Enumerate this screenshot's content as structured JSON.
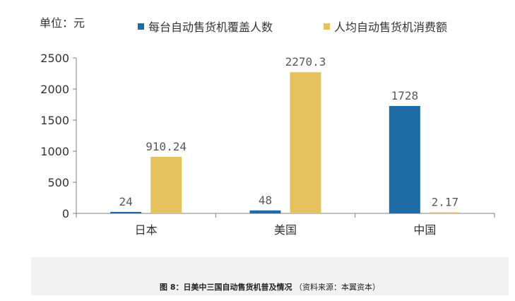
{
  "unit_label": "单位：元",
  "caption": {
    "main": "图 8：日美中三国自动售货机普及情况",
    "source": "（资料来源：本翼资本）"
  },
  "colors": {
    "series_1": "#1f6ba5",
    "series_2": "#e6c25f"
  },
  "chart_data": {
    "type": "bar",
    "categories": [
      "日本",
      "美国",
      "中国"
    ],
    "series": [
      {
        "name": "每台自动售货机覆盖人数",
        "values": [
          24,
          48,
          1728
        ],
        "labels": [
          "24",
          "48",
          "1728"
        ]
      },
      {
        "name": "人均自动售货机消费额",
        "values": [
          910.24,
          2270.3,
          2.17
        ],
        "labels": [
          "910.24",
          "2270.3",
          "2.17"
        ]
      }
    ],
    "ylim": [
      0,
      2500
    ],
    "yticks": [
      0,
      500,
      1000,
      1500,
      2000,
      2500
    ],
    "grid": false,
    "legend_position": "top"
  }
}
